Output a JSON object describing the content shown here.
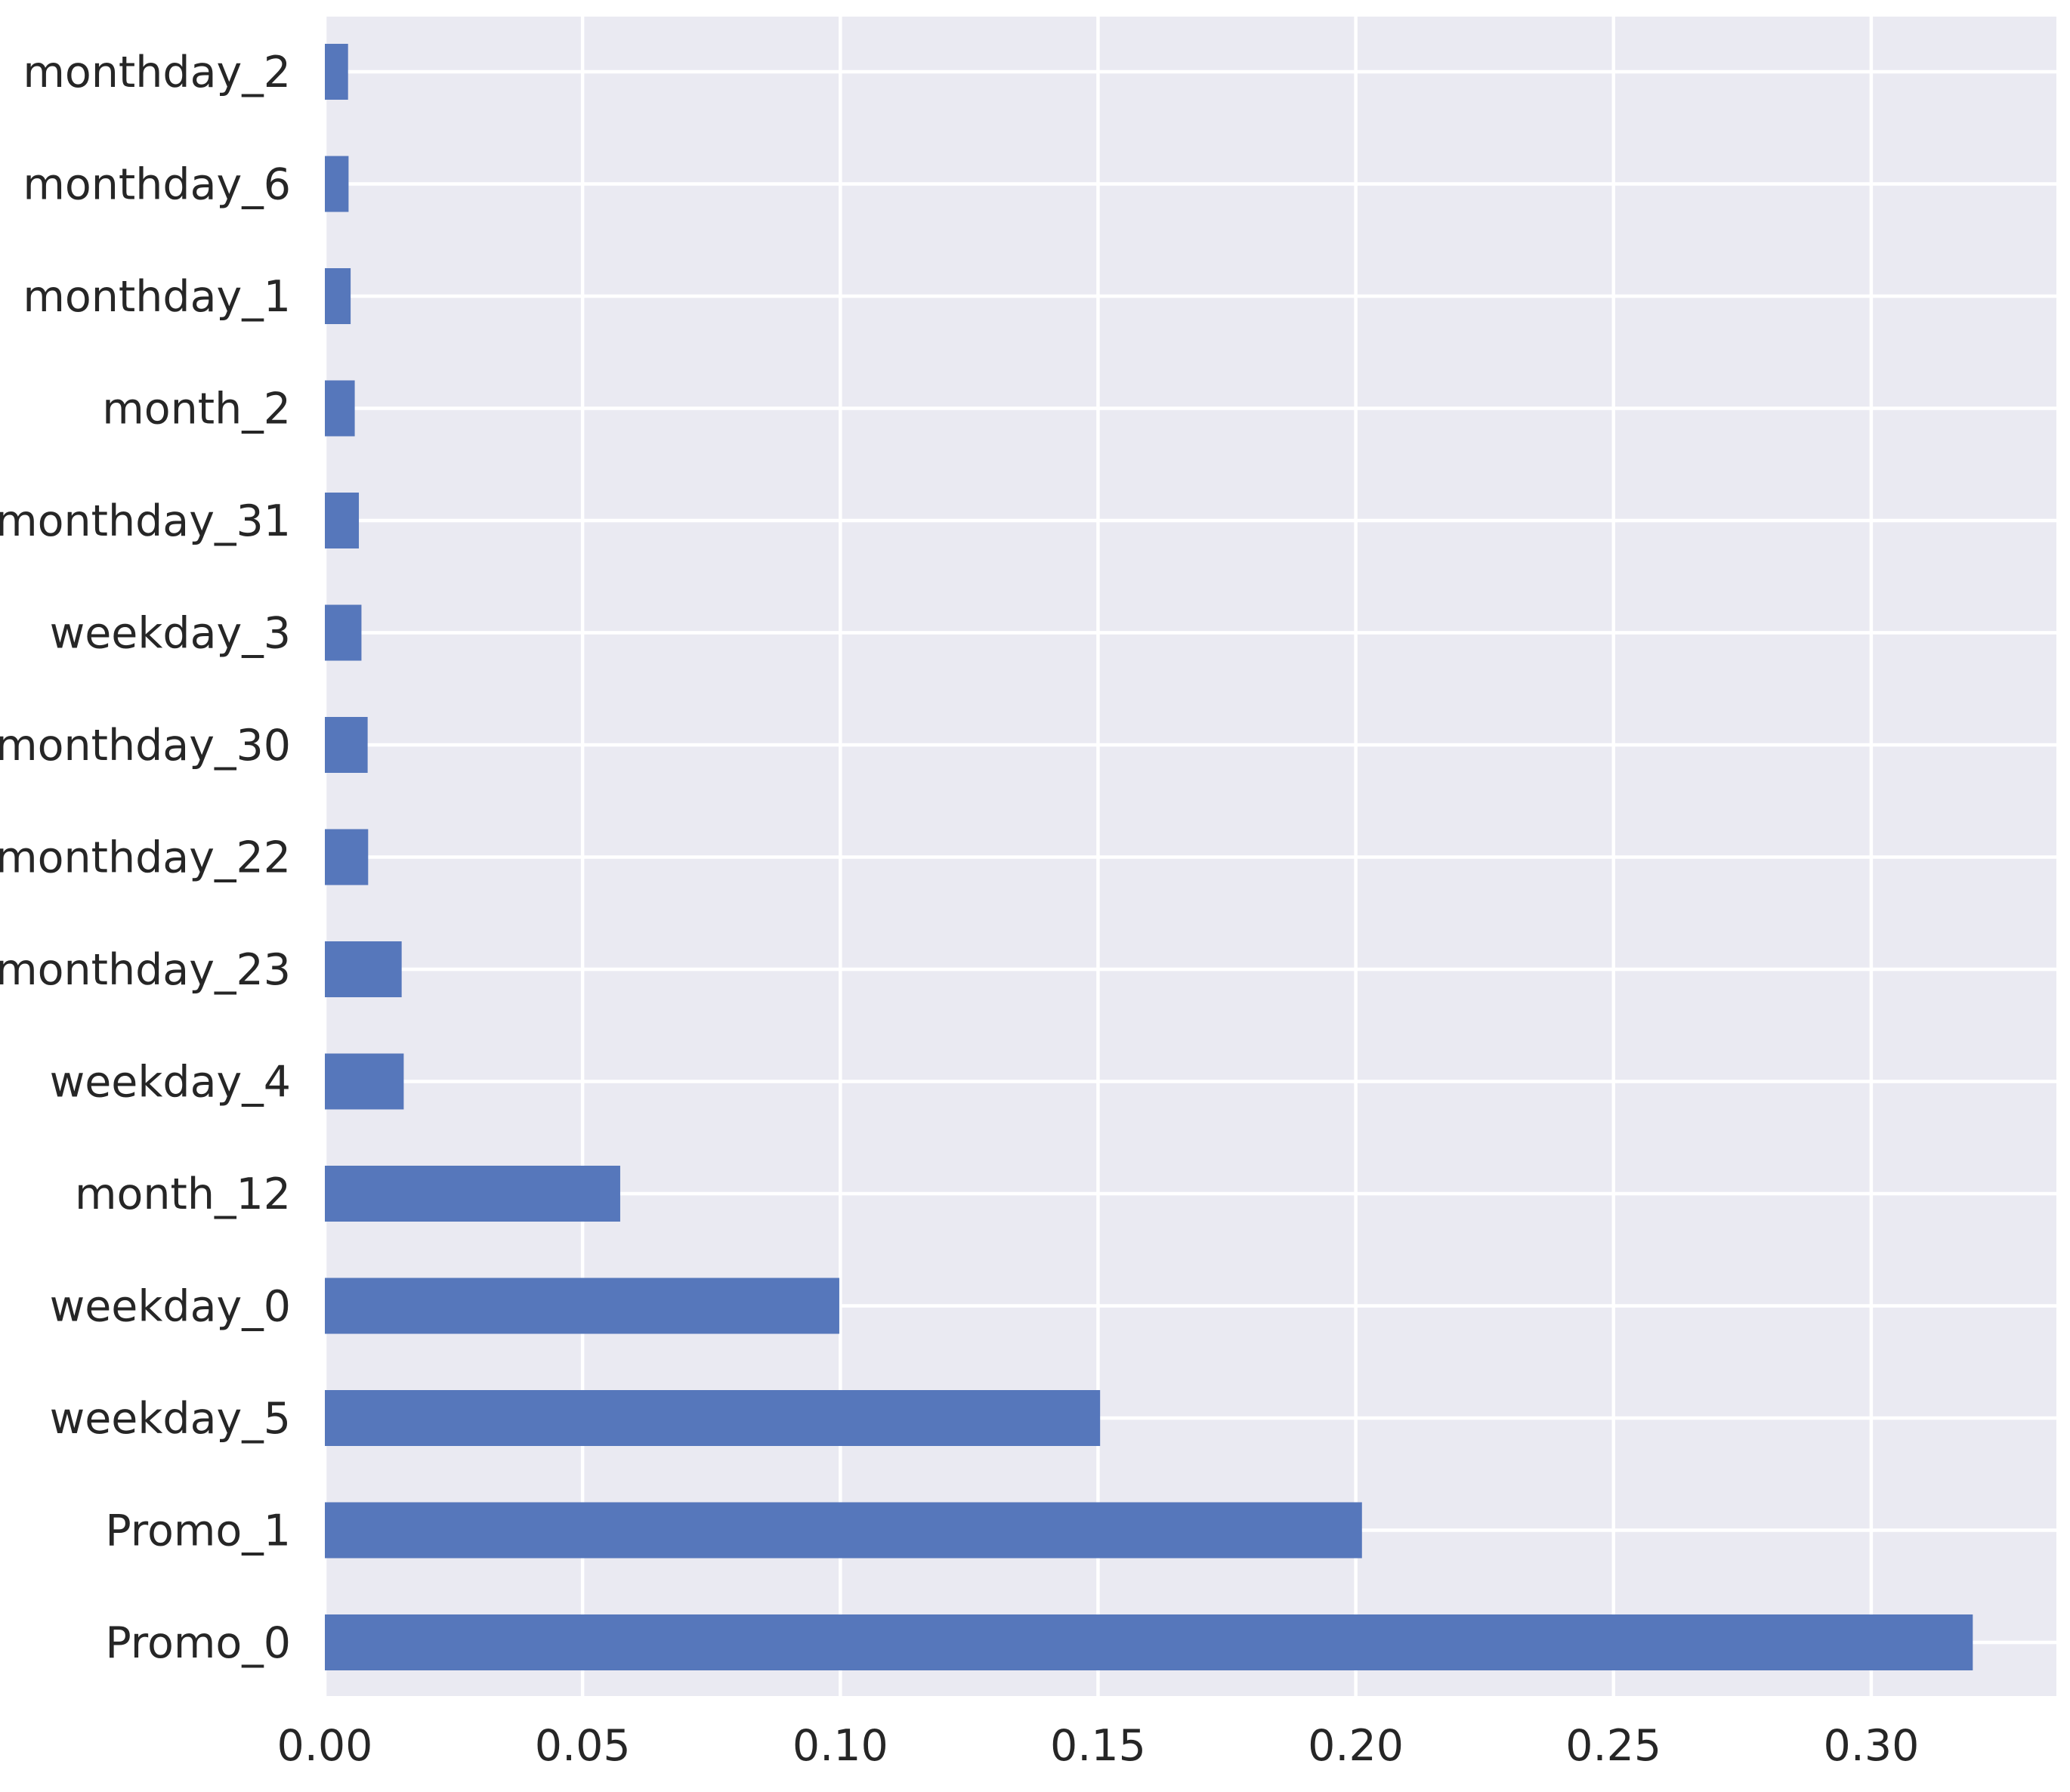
{
  "colors": {
    "bar": "#5677bb",
    "plot_background": "#eaeaf2",
    "grid": "#ffffff",
    "text": "#262626"
  },
  "chart_data": {
    "type": "bar",
    "orientation": "horizontal",
    "title": "",
    "xlabel": "",
    "ylabel": "",
    "categories": [
      "monthday_2",
      "monthday_6",
      "monthday_1",
      "month_2",
      "monthday_31",
      "weekday_3",
      "monthday_30",
      "monthday_22",
      "monthday_23",
      "weekday_4",
      "month_12",
      "weekday_0",
      "weekday_5",
      "Promo_1",
      "Promo_0"
    ],
    "values": [
      0.0045,
      0.0046,
      0.005,
      0.0058,
      0.0066,
      0.0071,
      0.0083,
      0.0084,
      0.0149,
      0.0153,
      0.0573,
      0.0998,
      0.1504,
      0.2012,
      0.3197
    ],
    "x_ticks": [
      0.0,
      0.05,
      0.1,
      0.15,
      0.2,
      0.25,
      0.3
    ],
    "x_tick_labels": [
      "0.00",
      "0.05",
      "0.10",
      "0.15",
      "0.20",
      "0.25",
      "0.30"
    ],
    "xlim": [
      0,
      0.336
    ],
    "grid": true,
    "legend": false,
    "style": "seaborn-darkgrid"
  }
}
